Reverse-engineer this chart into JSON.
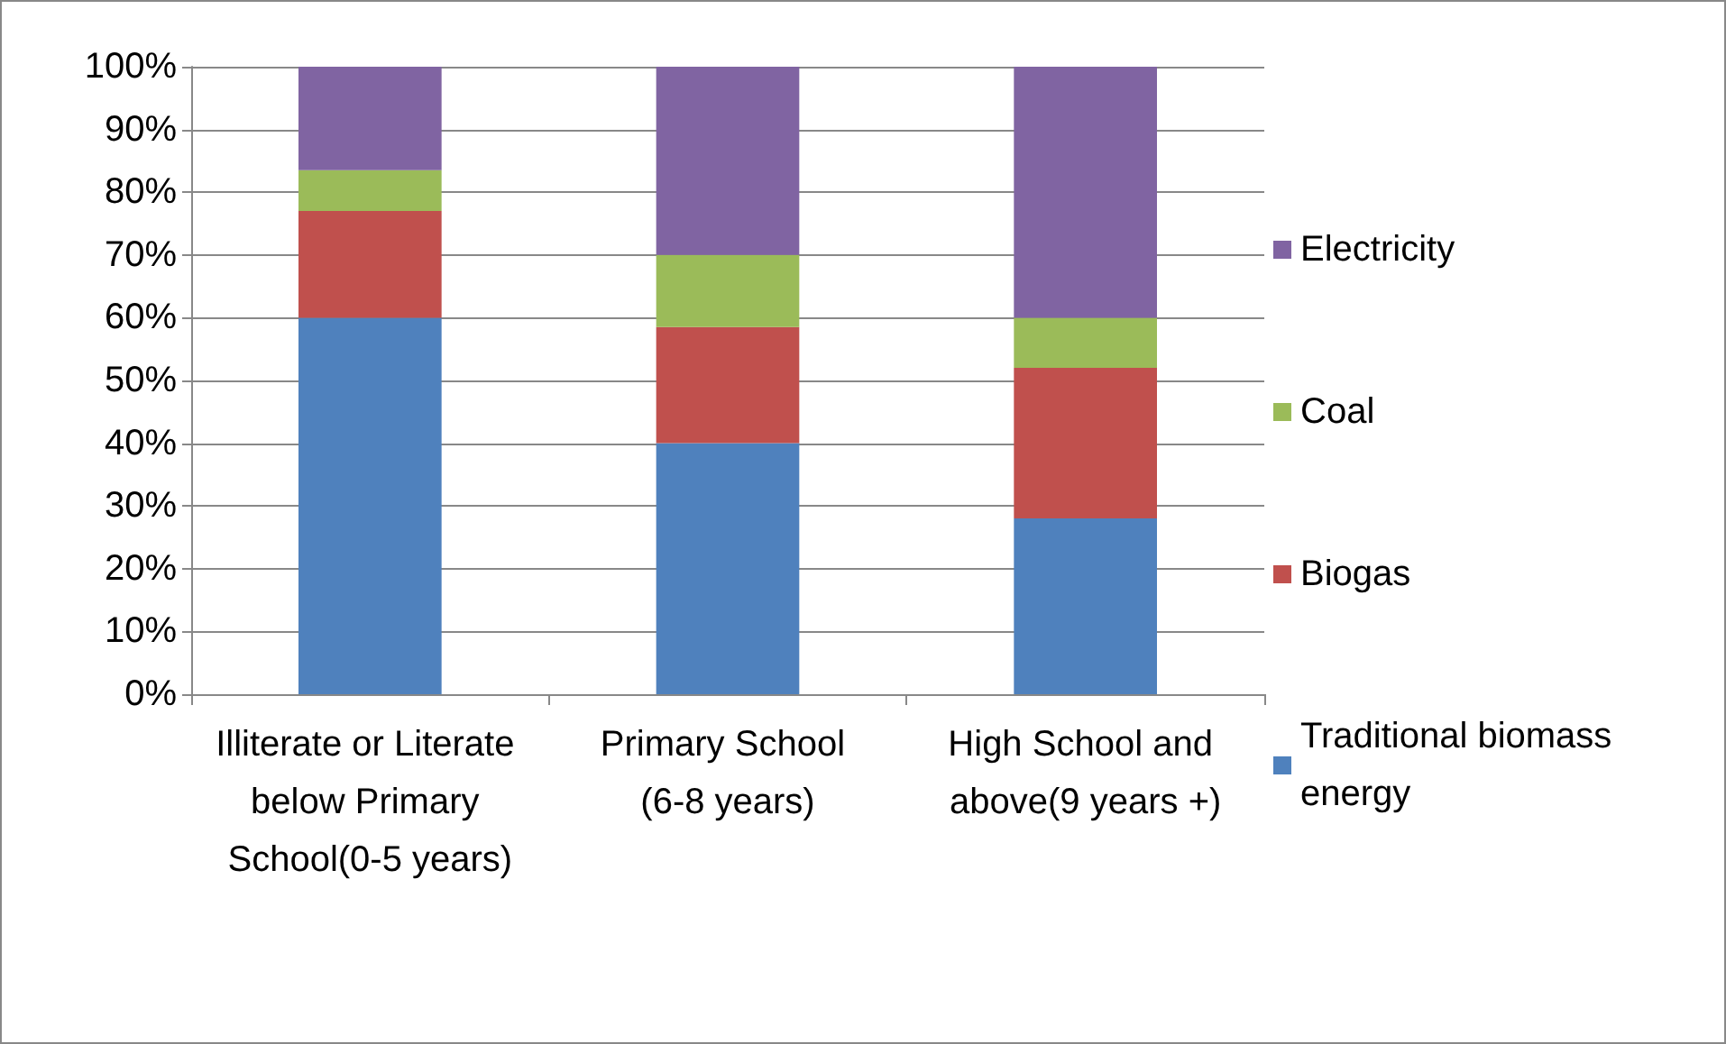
{
  "chart_data": {
    "type": "bar",
    "stacked": true,
    "categories": [
      "Illiterate or Literate below Primary School(0-5 years)",
      "Primary School (6-8 years)",
      "High School and above(9 years +)"
    ],
    "series": [
      {
        "name": "Traditional biomass energy",
        "color": "#4f81bd",
        "values": [
          60,
          40,
          28
        ]
      },
      {
        "name": "Biogas",
        "color": "#c0504d",
        "values": [
          17,
          18.5,
          24
        ]
      },
      {
        "name": "Coal",
        "color": "#9bbb59",
        "values": [
          6.5,
          11.5,
          8
        ]
      },
      {
        "name": "Electricity",
        "color": "#8064a2",
        "values": [
          16.5,
          30,
          40
        ]
      }
    ],
    "ylim": [
      0,
      100
    ],
    "yticks": [
      {
        "value": 0,
        "label": "0%"
      },
      {
        "value": 10,
        "label": "10%"
      },
      {
        "value": 20,
        "label": "20%"
      },
      {
        "value": 30,
        "label": "30%"
      },
      {
        "value": 40,
        "label": "40%"
      },
      {
        "value": 50,
        "label": "50%"
      },
      {
        "value": 60,
        "label": "60%"
      },
      {
        "value": 70,
        "label": "70%"
      },
      {
        "value": 80,
        "label": "80%"
      },
      {
        "value": 90,
        "label": "90%"
      },
      {
        "value": 100,
        "label": "100%"
      }
    ],
    "grid": "y",
    "legend": "right"
  }
}
